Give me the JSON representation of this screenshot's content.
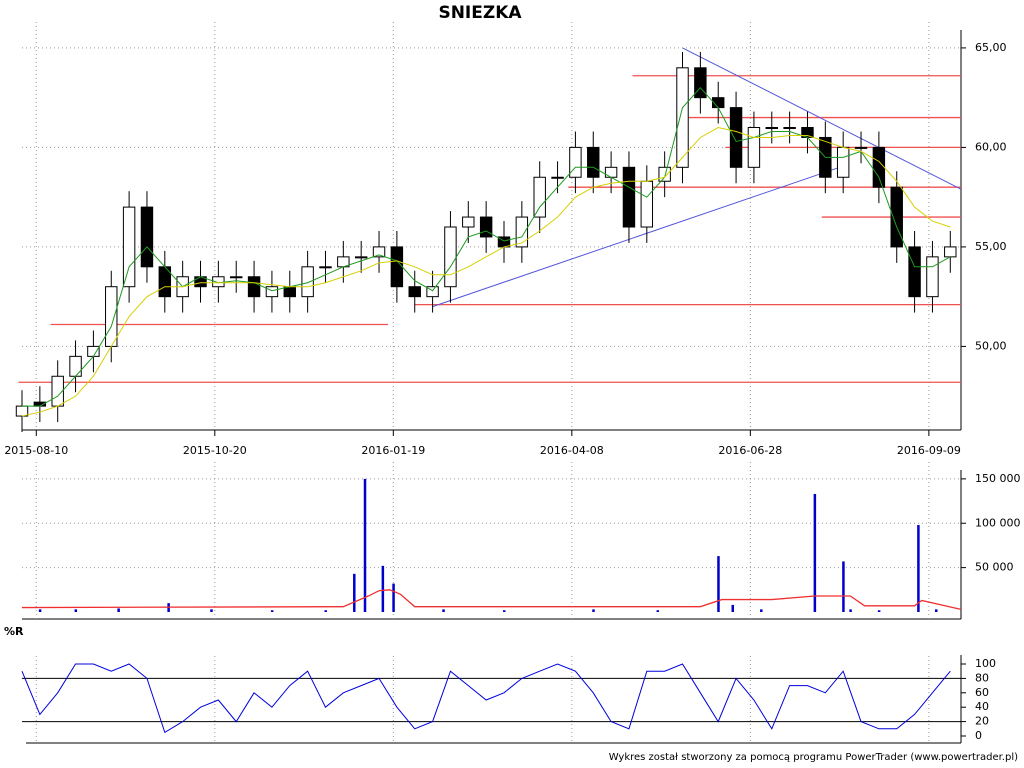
{
  "chart_data": [
    {
      "type": "candlestick",
      "title": "SNIEZKA",
      "x": [
        0,
        5,
        10,
        15,
        20,
        25,
        30,
        35,
        40,
        45,
        50,
        55,
        60,
        65,
        70,
        75,
        80,
        85,
        90,
        95,
        100,
        105,
        110,
        115,
        120,
        125,
        130,
        135,
        140,
        145,
        150,
        155,
        160,
        165,
        170,
        175,
        180,
        185,
        190,
        195,
        200,
        205,
        210,
        215,
        220,
        225,
        230,
        235,
        240,
        245,
        250,
        255,
        260
      ],
      "open": [
        46.5,
        47.2,
        47,
        48.5,
        49.5,
        50,
        53,
        57,
        54,
        52.5,
        53.5,
        53,
        53.5,
        53.5,
        52.5,
        53,
        52.5,
        54,
        54,
        54.5,
        54.5,
        55,
        53,
        52.5,
        53,
        56,
        56.5,
        55.5,
        55,
        56.5,
        58.5,
        58.5,
        60,
        58.5,
        59,
        56,
        58.3,
        59,
        64,
        62.5,
        62,
        59,
        61,
        61,
        61,
        60.5,
        58.5,
        60,
        60,
        58,
        55,
        52.5,
        54.5
      ],
      "high": [
        47.8,
        48,
        49.3,
        50.3,
        50.8,
        53.8,
        57.8,
        57.8,
        54.8,
        54.3,
        54.3,
        54.3,
        54.3,
        54.3,
        53.8,
        53.8,
        54.8,
        54.8,
        55.3,
        55.3,
        55.8,
        55.8,
        53.8,
        53.8,
        56.8,
        57.3,
        57.3,
        56.3,
        57.3,
        59.3,
        59.3,
        60.8,
        60.8,
        59.8,
        59.8,
        59.1,
        59.8,
        64.8,
        64.8,
        63.3,
        62.8,
        61.8,
        61.8,
        61.8,
        61.8,
        61.3,
        60.8,
        60.8,
        60.8,
        58.8,
        55.8,
        55.3,
        55.8
      ],
      "low": [
        45.7,
        46.2,
        46.2,
        47.7,
        48.7,
        49.2,
        52.2,
        53.2,
        51.7,
        51.7,
        52.2,
        52.2,
        52.7,
        51.7,
        51.7,
        51.7,
        51.7,
        53.2,
        53.2,
        53.7,
        53.7,
        52.2,
        51.7,
        51.7,
        52.2,
        55.2,
        54.7,
        54.2,
        54.2,
        55.7,
        57.7,
        57.7,
        57.7,
        57.7,
        55.2,
        55.2,
        57.5,
        58.2,
        61.7,
        61.2,
        58.2,
        58.2,
        60.2,
        60.2,
        59.7,
        57.7,
        57.7,
        59.2,
        57.2,
        54.2,
        51.7,
        51.7,
        53.7
      ],
      "close": [
        47,
        47,
        48.5,
        49.5,
        50,
        53,
        57,
        54,
        52.5,
        53.5,
        53,
        53.5,
        53.5,
        52.5,
        53,
        52.5,
        54,
        54,
        54.5,
        54.5,
        55,
        53,
        52.5,
        53,
        56,
        56.5,
        55.5,
        55,
        56.5,
        58.5,
        58.5,
        60,
        58.5,
        59,
        56,
        58.3,
        59,
        64,
        62.5,
        62,
        59,
        61,
        61,
        61,
        60.5,
        58.5,
        60,
        60,
        58,
        55,
        52.5,
        54.5,
        55
      ],
      "series": [
        {
          "color": "#1f9a1f",
          "values": [
            47,
            47,
            47.5,
            48.5,
            49.5,
            51,
            54,
            55,
            54,
            53,
            53.5,
            53.2,
            53.3,
            53.2,
            52.8,
            53,
            53.2,
            53.6,
            54,
            54.3,
            54.6,
            54.3,
            53.3,
            52.8,
            54,
            55.5,
            55.8,
            55.3,
            55.5,
            57,
            58,
            59,
            59,
            58.5,
            58,
            57.5,
            58.5,
            62,
            63,
            62,
            60.3,
            60.5,
            60.8,
            60.8,
            60.5,
            59.5,
            59.5,
            59.8,
            58.5,
            56,
            54,
            54,
            54.5
          ]
        },
        {
          "color": "#d8cf00",
          "values": [
            46.5,
            46.7,
            47,
            47.5,
            48.5,
            50,
            51.5,
            52.5,
            53,
            53,
            53.2,
            53.2,
            53.2,
            53.2,
            53.1,
            53,
            53,
            53.2,
            53.5,
            53.8,
            54.2,
            54.3,
            54,
            53.6,
            53.6,
            54,
            54.5,
            55,
            55.2,
            55.8,
            56.5,
            57.5,
            58,
            58.2,
            58.3,
            58.3,
            58.5,
            59.5,
            60.5,
            61,
            60.8,
            60.5,
            60.5,
            60.6,
            60.6,
            60.3,
            60,
            59.8,
            59.3,
            58.3,
            57,
            56.3,
            56
          ]
        }
      ],
      "levels": [
        {
          "value": 48.2,
          "x": [
            -1,
            263
          ]
        },
        {
          "value": 51.1,
          "x": [
            8,
            102.5
          ]
        },
        {
          "value": 52.1,
          "x": [
            110,
            263
          ]
        },
        {
          "value": 56.5,
          "x": [
            224,
            263
          ]
        },
        {
          "value": 58,
          "x": [
            153,
            263
          ]
        },
        {
          "value": 60,
          "x": [
            197,
            263
          ]
        },
        {
          "value": 61.5,
          "x": [
            184,
            263
          ]
        },
        {
          "value": 63.6,
          "x": [
            171,
            263
          ]
        }
      ],
      "level_color": "#f05050",
      "trendlines": [
        {
          "x": [
            185,
            263
          ],
          "values": [
            65,
            57.9
          ]
        },
        {
          "x": [
            115,
            229
          ],
          "values": [
            52,
            59
          ]
        }
      ],
      "trend_color": "#5555dd",
      "xlim": [
        0,
        263
      ],
      "xticks": [
        {
          "value": 4,
          "label": "2015-08-10"
        },
        {
          "value": 54,
          "label": "2015-10-20"
        },
        {
          "value": 104,
          "label": "2016-01-19"
        },
        {
          "value": 154,
          "label": "2016-04-08"
        },
        {
          "value": 204,
          "label": "2016-06-28"
        },
        {
          "value": 254,
          "label": "2016-09-09"
        }
      ],
      "ylim": [
        45.9,
        65.9
      ],
      "yticks": [
        {
          "value": 50,
          "label": "50,00"
        },
        {
          "value": 55,
          "label": "55,00"
        },
        {
          "value": 60,
          "label": "60,00"
        },
        {
          "value": 65,
          "label": "65,00"
        }
      ],
      "grid": true
    },
    {
      "type": "volume",
      "x": [
        5,
        15,
        27,
        41,
        53,
        70,
        85,
        93,
        96,
        101,
        104,
        118,
        135,
        160,
        178,
        195,
        199,
        207,
        222,
        230,
        232,
        240,
        251,
        256
      ],
      "values": [
        3000,
        3000,
        4000,
        10000,
        3000,
        2000,
        2000,
        43000,
        150000,
        52000,
        32000,
        3000,
        2000,
        3000,
        2000,
        63000,
        8000,
        3000,
        133000,
        57000,
        3000,
        2000,
        98000,
        3000
      ],
      "color": "#0000cc",
      "average": {
        "color": "#f03030",
        "x": [
          0,
          90,
          97,
          100,
          103,
          106,
          110,
          190,
          196,
          210,
          222,
          232,
          236,
          250,
          252,
          263
        ],
        "values": [
          5000,
          6000,
          18000,
          24000,
          25000,
          20000,
          6000,
          6000,
          14000,
          14000,
          18000,
          18000,
          7000,
          7000,
          13000,
          3000
        ]
      },
      "xlim": [
        0,
        263
      ],
      "xticks": [
        4,
        54,
        104,
        154,
        204,
        254
      ],
      "ylim": [
        0,
        160000
      ],
      "yticks": [
        {
          "value": 50000,
          "label": "50 000"
        },
        {
          "value": 100000,
          "label": "100 000"
        },
        {
          "value": 150000,
          "label": "150 000"
        }
      ],
      "grid": true
    },
    {
      "type": "line",
      "title": "%R",
      "x": [
        0,
        5,
        10,
        15,
        20,
        25,
        30,
        35,
        40,
        45,
        50,
        55,
        60,
        65,
        70,
        75,
        80,
        85,
        90,
        95,
        100,
        105,
        110,
        115,
        120,
        125,
        130,
        135,
        140,
        145,
        150,
        155,
        160,
        165,
        170,
        175,
        180,
        185,
        190,
        195,
        200,
        205,
        210,
        215,
        220,
        225,
        230,
        235,
        240,
        245,
        250,
        255,
        260
      ],
      "values": [
        90,
        30,
        60,
        100,
        100,
        90,
        100,
        80,
        5,
        20,
        40,
        50,
        20,
        60,
        40,
        70,
        90,
        40,
        60,
        70,
        80,
        40,
        10,
        20,
        90,
        70,
        50,
        60,
        80,
        90,
        100,
        90,
        60,
        20,
        10,
        90,
        90,
        100,
        60,
        20,
        80,
        50,
        10,
        70,
        70,
        60,
        90,
        20,
        10,
        10,
        30,
        60,
        90
      ],
      "color": "#0000dd",
      "bands": [
        20,
        80
      ],
      "xlim": [
        0,
        263
      ],
      "xticks": [
        4,
        54,
        104,
        154,
        204,
        254
      ],
      "ylim": [
        0,
        100
      ],
      "yticks": [
        0,
        20,
        40,
        60,
        80,
        100
      ],
      "grid": true
    }
  ],
  "footer": "Wykres został stworzony za pomocą programu PowerTrader (www.powertrader.pl)"
}
